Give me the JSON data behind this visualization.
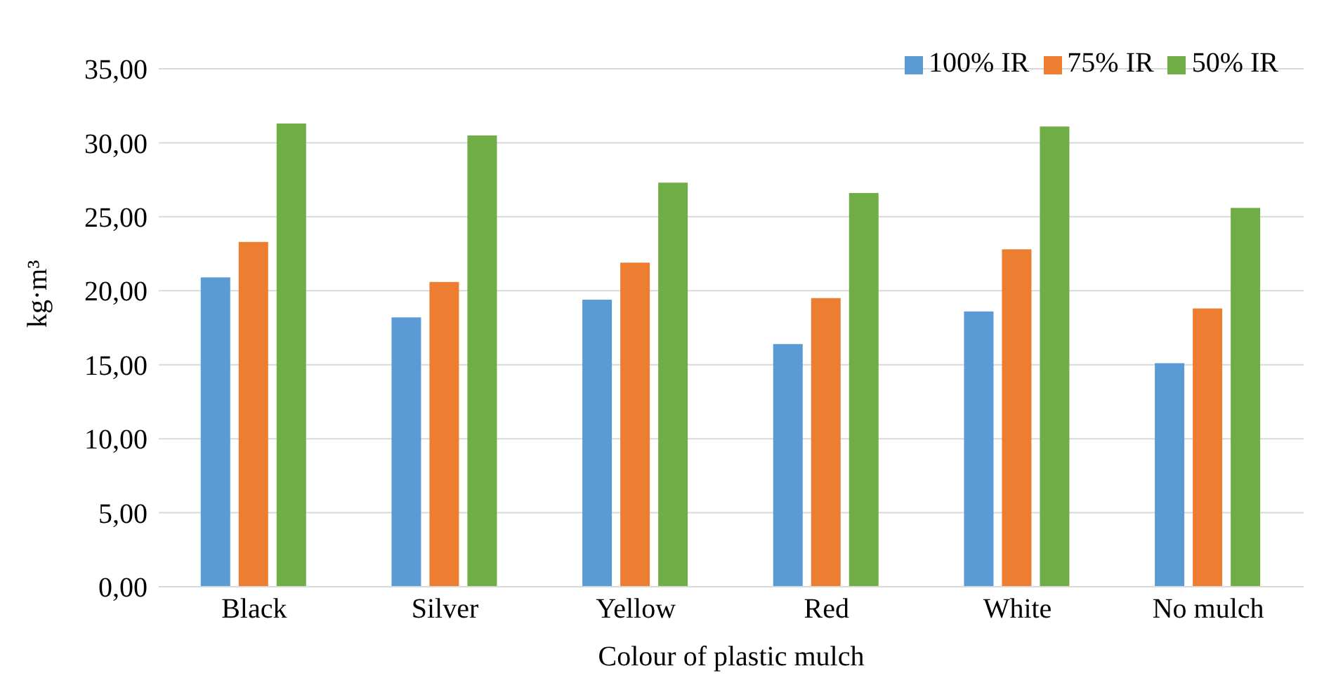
{
  "chart_data": {
    "type": "bar",
    "xlabel": "Colour of plastic mulch",
    "ylabel": "kg·m³",
    "categories": [
      "Black",
      "Silver",
      "Yellow",
      "Red",
      "White",
      "No mulch"
    ],
    "series": [
      {
        "name": "100% IR",
        "color": "#5b9bd5",
        "values": [
          20.9,
          18.2,
          19.4,
          16.4,
          18.6,
          15.1
        ]
      },
      {
        "name": "75% IR",
        "color": "#ed7d31",
        "values": [
          23.3,
          20.6,
          21.9,
          19.5,
          22.8,
          18.8
        ]
      },
      {
        "name": "50% IR",
        "color": "#70ad47",
        "values": [
          31.3,
          30.5,
          27.3,
          26.6,
          31.1,
          25.6
        ]
      }
    ],
    "ylim": [
      0,
      35
    ],
    "yticks": [
      {
        "value": 0,
        "label": "0,00"
      },
      {
        "value": 5,
        "label": "5,00"
      },
      {
        "value": 10,
        "label": "10,00"
      },
      {
        "value": 15,
        "label": "15,00"
      },
      {
        "value": 20,
        "label": "20,00"
      },
      {
        "value": 25,
        "label": "25,00"
      },
      {
        "value": 30,
        "label": "30,00"
      },
      {
        "value": 35,
        "label": "35,00"
      }
    ],
    "grid": "y",
    "legend": "top right"
  }
}
